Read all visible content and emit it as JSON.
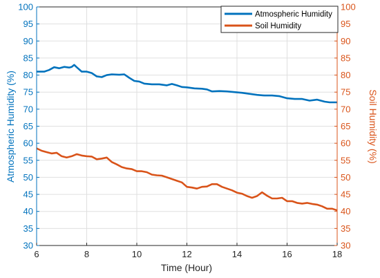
{
  "chart_data": {
    "type": "line",
    "xlabel": "Time (Hour)",
    "ylabel_left": "Atmospheric Humidity (%)",
    "ylabel_right": "Soil Humidity (%)",
    "xlim": [
      6,
      18
    ],
    "ylim_left": [
      30,
      100
    ],
    "ylim_right": [
      30,
      100
    ],
    "xticks": [
      6,
      8,
      10,
      12,
      14,
      16,
      18
    ],
    "yticks": [
      30,
      35,
      40,
      45,
      50,
      55,
      60,
      65,
      70,
      75,
      80,
      85,
      90,
      95,
      100
    ],
    "grid": true,
    "legend_position": "top-right",
    "colors": {
      "atmospheric": "#0072BD",
      "soil": "#D95319",
      "grid": "#DFDFDF",
      "axis": "#262626"
    },
    "series": [
      {
        "name": "Atmospheric Humidity",
        "axis": "left",
        "x": [
          6.0,
          6.3,
          6.5,
          6.7,
          6.9,
          7.1,
          7.3,
          7.4,
          7.5,
          7.6,
          7.8,
          8.0,
          8.2,
          8.4,
          8.6,
          8.8,
          9.0,
          9.3,
          9.5,
          9.7,
          9.9,
          10.1,
          10.3,
          10.6,
          10.9,
          11.2,
          11.4,
          11.6,
          11.8,
          12.0,
          12.3,
          12.6,
          12.8,
          13.0,
          13.3,
          13.6,
          13.9,
          14.2,
          14.5,
          14.8,
          15.1,
          15.4,
          15.7,
          16.0,
          16.3,
          16.6,
          16.9,
          17.2,
          17.5,
          17.7,
          18.0
        ],
        "y": [
          81,
          81,
          81.5,
          82.3,
          82,
          82.4,
          82.2,
          82.4,
          83,
          82.3,
          81,
          81,
          80.6,
          79.6,
          79.4,
          80,
          80.2,
          80.1,
          80.2,
          79.2,
          78.3,
          78.1,
          77.5,
          77.3,
          77.3,
          77.0,
          77.4,
          77.0,
          76.5,
          76.4,
          76.1,
          76.0,
          75.8,
          75.2,
          75.3,
          75.2,
          75.0,
          74.8,
          74.5,
          74.2,
          74.0,
          74.0,
          73.8,
          73.2,
          73.0,
          73.0,
          72.5,
          72.8,
          72.2,
          72.0,
          72.0
        ]
      },
      {
        "name": "Soil Humidity",
        "axis": "right",
        "x": [
          6.0,
          6.2,
          6.4,
          6.6,
          6.8,
          7.0,
          7.2,
          7.4,
          7.6,
          7.8,
          8.0,
          8.2,
          8.4,
          8.6,
          8.8,
          9.0,
          9.2,
          9.4,
          9.6,
          9.8,
          10.0,
          10.2,
          10.4,
          10.6,
          10.8,
          11.0,
          11.2,
          11.4,
          11.6,
          11.8,
          12.0,
          12.2,
          12.4,
          12.6,
          12.8,
          13.0,
          13.2,
          13.4,
          13.6,
          13.8,
          14.0,
          14.2,
          14.4,
          14.6,
          14.8,
          15.0,
          15.2,
          15.4,
          15.6,
          15.8,
          16.0,
          16.2,
          16.4,
          16.6,
          16.8,
          17.0,
          17.2,
          17.4,
          17.6,
          17.8,
          18.0
        ],
        "y": [
          58.5,
          57.8,
          57.4,
          57.0,
          57.2,
          56.2,
          55.8,
          56.2,
          56.8,
          56.4,
          56.2,
          56.1,
          55.3,
          55.5,
          55.8,
          54.5,
          53.8,
          53.0,
          52.6,
          52.4,
          51.8,
          51.8,
          51.5,
          50.8,
          50.6,
          50.5,
          50.0,
          49.5,
          49.0,
          48.5,
          47.2,
          47.0,
          46.7,
          47.2,
          47.3,
          48.0,
          48.0,
          47.2,
          46.7,
          46.2,
          45.5,
          45.2,
          44.5,
          44.0,
          44.5,
          45.6,
          44.6,
          43.8,
          43.8,
          44.0,
          43.0,
          43.0,
          42.5,
          42.3,
          42.5,
          42.2,
          42.0,
          41.5,
          40.8,
          40.8,
          40.3
        ]
      }
    ]
  }
}
